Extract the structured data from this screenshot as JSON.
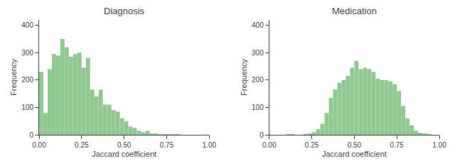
{
  "chart_data": [
    {
      "type": "histogram",
      "title": "Diagnosis",
      "xlabel": "Jaccard coefficient",
      "ylabel": "Frequency",
      "bins": [
        0,
        0.025,
        0.05,
        0.075,
        0.1,
        0.125,
        0.15,
        0.175,
        0.2,
        0.225,
        0.25,
        0.275,
        0.3,
        0.325,
        0.35,
        0.375,
        0.4,
        0.425,
        0.45,
        0.475,
        0.5,
        0.525,
        0.55,
        0.575,
        0.6,
        0.625,
        0.65,
        0.675,
        0.7,
        0.725,
        0.75,
        0.775,
        0.8,
        0.825,
        0.85,
        0.875,
        0.9,
        0.925,
        0.95,
        0.975,
        1
      ],
      "values": [
        230,
        80,
        240,
        295,
        290,
        350,
        320,
        285,
        295,
        300,
        245,
        280,
        165,
        140,
        165,
        110,
        110,
        90,
        85,
        60,
        50,
        30,
        25,
        15,
        10,
        15,
        5,
        5,
        2,
        2,
        1,
        1,
        1,
        0,
        0,
        0,
        0,
        0,
        0,
        0
      ],
      "color": "#90c990",
      "xlim": [
        0.0,
        1.0
      ],
      "xticks": [
        {
          "value": 0,
          "label": "0.00"
        },
        0.25,
        {
          "value": 0.5,
          "label": "0.50"
        },
        0.75,
        {
          "value": 1,
          "label": "1.00"
        }
      ],
      "ylim": [
        0,
        420
      ],
      "yticks": [
        0,
        100,
        200,
        300,
        400
      ],
      "grid": false
    },
    {
      "type": "histogram",
      "title": "Medication",
      "xlabel": "Jaccard coefficient",
      "ylabel": "Frequency",
      "bins": [
        0,
        0.025,
        0.05,
        0.075,
        0.1,
        0.125,
        0.15,
        0.175,
        0.2,
        0.225,
        0.25,
        0.275,
        0.3,
        0.325,
        0.35,
        0.375,
        0.4,
        0.425,
        0.45,
        0.475,
        0.5,
        0.525,
        0.55,
        0.575,
        0.6,
        0.625,
        0.65,
        0.675,
        0.7,
        0.725,
        0.75,
        0.775,
        0.8,
        0.825,
        0.85,
        0.875,
        0.9,
        0.925,
        0.95,
        0.975,
        1
      ],
      "values": [
        0,
        0,
        0,
        0,
        1,
        2,
        0,
        0,
        2,
        5,
        10,
        20,
        40,
        80,
        135,
        165,
        190,
        200,
        215,
        245,
        270,
        240,
        245,
        240,
        230,
        205,
        200,
        200,
        195,
        185,
        160,
        105,
        60,
        35,
        15,
        8,
        3,
        1,
        0,
        0
      ],
      "color": "#90c990",
      "xlim": [
        0.0,
        1.0
      ],
      "xticks": [
        {
          "value": 0,
          "label": "0.00"
        },
        0.25,
        {
          "value": 0.5,
          "label": "0.50"
        },
        0.75,
        {
          "value": 1,
          "label": "1.00"
        }
      ],
      "ylim": [
        0,
        420
      ],
      "yticks": [
        0,
        100,
        200,
        300,
        400
      ],
      "grid": false
    }
  ]
}
